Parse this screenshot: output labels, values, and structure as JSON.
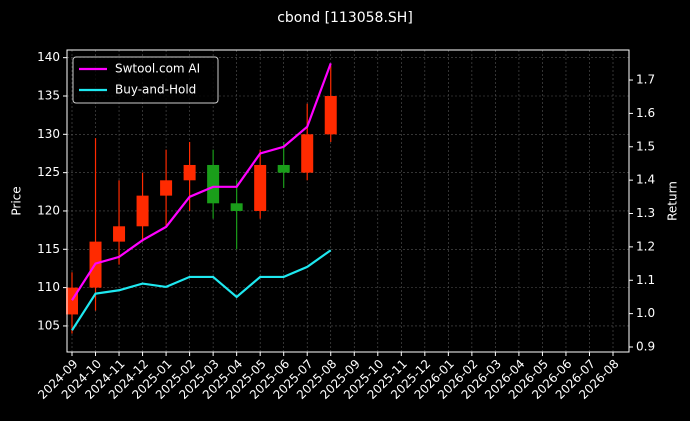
{
  "chart_data": {
    "type": "candlestick",
    "title": "cbond [113058.SH]",
    "ylabel": "Price",
    "y2label": "Return",
    "x": [
      "2024-09",
      "2024-10",
      "2024-11",
      "2024-12",
      "2025-01",
      "2025-02",
      "2025-03",
      "2025-04",
      "2025-05",
      "2025-06",
      "2025-07",
      "2025-08"
    ],
    "open": [
      106.5,
      110,
      116,
      118,
      122,
      124,
      126,
      121,
      120,
      126,
      125,
      130
    ],
    "high": [
      112,
      129.5,
      124,
      125,
      128,
      129,
      128,
      124,
      128,
      129,
      134,
      139
    ],
    "low": [
      104,
      107,
      113,
      116,
      118,
      120,
      119,
      115,
      119,
      123,
      124,
      129
    ],
    "close": [
      110,
      116,
      118,
      122,
      124,
      126,
      121,
      120,
      126,
      125,
      130,
      135
    ],
    "up_color": "#ff2a00",
    "down_color": "#1a9e1a",
    "series": [
      {
        "name": "Swtool.com AI",
        "color": "#ff00ff",
        "axis": "y2",
        "values": [
          1.04,
          1.15,
          1.17,
          1.22,
          1.26,
          1.35,
          1.38,
          1.38,
          1.48,
          1.5,
          1.56,
          1.75
        ]
      },
      {
        "name": "Buy-and-Hold",
        "color": "#1ee8f0",
        "axis": "y2",
        "values": [
          0.95,
          1.06,
          1.07,
          1.09,
          1.08,
          1.11,
          1.11,
          1.05,
          1.11,
          1.11,
          1.14,
          1.19
        ]
      }
    ],
    "ylim": [
      101.6,
      141.0
    ],
    "yticks": [
      105,
      110,
      115,
      120,
      125,
      130,
      135,
      140
    ],
    "y2lim": [
      0.885,
      1.79
    ],
    "y2ticks": [
      0.9,
      {
        "value": 1,
        "label": "1.0"
      },
      1.1,
      1.2,
      1.3,
      1.4,
      1.5,
      1.6,
      1.7
    ],
    "xlim": [
      "2024-09",
      "2026-08"
    ],
    "xticks": [
      "2024-09",
      "2024-10",
      "2024-11",
      "2024-12",
      "2025-01",
      "2025-02",
      "2025-03",
      "2025-04",
      "2025-05",
      "2025-06",
      "2025-07",
      "2025-08",
      "2025-09",
      "2025-10",
      "2025-11",
      "2025-12",
      "2026-01",
      "2026-02",
      "2026-03",
      "2026-04",
      "2026-05",
      "2026-06",
      "2026-07",
      "2026-08"
    ],
    "grid": true,
    "legend": "upper left"
  }
}
